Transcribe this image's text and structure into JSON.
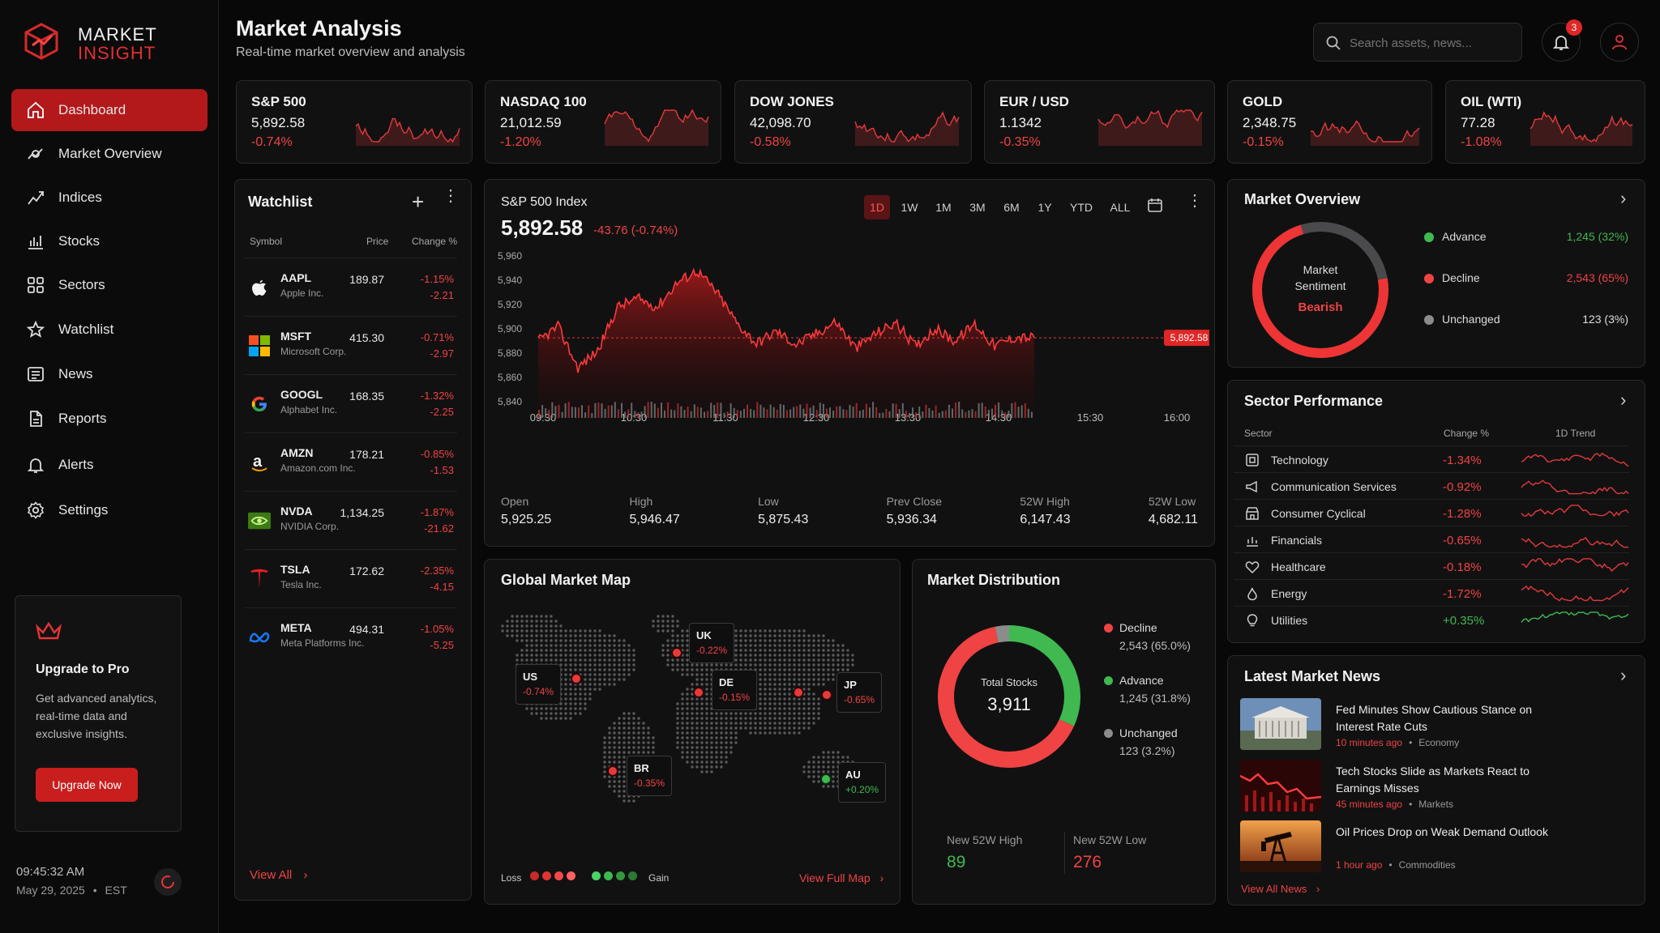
{
  "brand": {
    "line1": "MARKET",
    "line2": "INSIGHT"
  },
  "sidebar": {
    "items": [
      {
        "label": "Dashboard",
        "icon": "home-icon"
      },
      {
        "label": "Market Overview",
        "icon": "market-overview-icon"
      },
      {
        "label": "Indices",
        "icon": "indices-icon"
      },
      {
        "label": "Stocks",
        "icon": "stocks-icon"
      },
      {
        "label": "Sectors",
        "icon": "sectors-icon"
      },
      {
        "label": "Watchlist",
        "icon": "star-icon"
      },
      {
        "label": "News",
        "icon": "news-icon"
      },
      {
        "label": "Reports",
        "icon": "reports-icon"
      },
      {
        "label": "Alerts",
        "icon": "bell-icon"
      },
      {
        "label": "Settings",
        "icon": "gear-icon"
      }
    ],
    "upgrade": {
      "title": "Upgrade to Pro",
      "text": "Get advanced analytics, real-time data and exclusive insights.",
      "button": "Upgrade Now"
    },
    "clock": {
      "time": "09:45:32 AM",
      "date": "May 29, 2025",
      "tz": "EST"
    }
  },
  "header": {
    "title": "Market Analysis",
    "subtitle": "Real-time market overview and analysis",
    "search_placeholder": "Search assets, news...",
    "notifications": "3"
  },
  "tickers": [
    {
      "name": "S&P 500",
      "value": "5,892.58",
      "change": "-0.74%"
    },
    {
      "name": "NASDAQ 100",
      "value": "21,012.59",
      "change": "-1.20%"
    },
    {
      "name": "DOW JONES",
      "value": "42,098.70",
      "change": "-0.58%"
    },
    {
      "name": "EUR / USD",
      "value": "1.1342",
      "change": "-0.35%"
    },
    {
      "name": "GOLD",
      "value": "2,348.75",
      "change": "-0.15%"
    },
    {
      "name": "OIL (WTI)",
      "value": "77.28",
      "change": "-1.08%"
    }
  ],
  "watchlist": {
    "title": "Watchlist",
    "headers": {
      "symbol": "Symbol",
      "price": "Price",
      "change": "Change %"
    },
    "rows": [
      {
        "symbol": "AAPL",
        "name": "Apple Inc.",
        "price": "189.87",
        "pct": "-1.15%",
        "chg": "-2.21"
      },
      {
        "symbol": "MSFT",
        "name": "Microsoft Corp.",
        "price": "415.30",
        "pct": "-0.71%",
        "chg": "-2.97"
      },
      {
        "symbol": "GOOGL",
        "name": "Alphabet Inc.",
        "price": "168.35",
        "pct": "-1.32%",
        "chg": "-2.25"
      },
      {
        "symbol": "AMZN",
        "name": "Amazon.com Inc.",
        "price": "178.21",
        "pct": "-0.85%",
        "chg": "-1.53"
      },
      {
        "symbol": "NVDA",
        "name": "NVIDIA Corp.",
        "price": "1,134.25",
        "pct": "-1.87%",
        "chg": "-21.62"
      },
      {
        "symbol": "TSLA",
        "name": "Tesla Inc.",
        "price": "172.62",
        "pct": "-2.35%",
        "chg": "-4.15"
      },
      {
        "symbol": "META",
        "name": "Meta Platforms Inc.",
        "price": "494.31",
        "pct": "-1.05%",
        "chg": "-5.25"
      }
    ],
    "view_all": "View All"
  },
  "main_chart": {
    "title": "S&P 500 Index",
    "price": "5,892.58",
    "change": "-43.76 (-0.74%)",
    "ranges": [
      "1D",
      "1W",
      "1M",
      "3M",
      "6M",
      "1Y",
      "YTD",
      "ALL"
    ],
    "active_range": "1D",
    "last_label": "5,892.58",
    "stats": [
      {
        "label": "Open",
        "value": "5,925.25"
      },
      {
        "label": "High",
        "value": "5,946.47"
      },
      {
        "label": "Low",
        "value": "5,875.43"
      },
      {
        "label": "Prev Close",
        "value": "5,936.34"
      },
      {
        "label": "52W High",
        "value": "6,147.43"
      },
      {
        "label": "52W Low",
        "value": "4,682.11"
      }
    ]
  },
  "chart_data": {
    "type": "area",
    "x_ticks": [
      "09:30",
      "10:30",
      "11:30",
      "12:30",
      "13:30",
      "14:30",
      "15:30",
      "16:00"
    ],
    "y_ticks": [
      "5,960",
      "5,940",
      "5,920",
      "5,900",
      "5,880",
      "5,860",
      "5,840"
    ],
    "ylim": [
      5840,
      5960
    ],
    "reference_value": 5892.58,
    "x": [
      "09:30",
      "09:45",
      "10:00",
      "10:15",
      "10:30",
      "10:45",
      "11:00",
      "11:15",
      "11:30",
      "11:45",
      "12:00",
      "12:15",
      "12:30",
      "12:45",
      "13:00",
      "13:15",
      "13:30",
      "13:45",
      "14:00",
      "14:15",
      "14:30",
      "14:45",
      "15:00",
      "15:15",
      "15:30",
      "15:45"
    ],
    "values": [
      5890,
      5902,
      5868,
      5882,
      5918,
      5925,
      5918,
      5938,
      5948,
      5930,
      5905,
      5888,
      5898,
      5887,
      5896,
      5906,
      5884,
      5896,
      5905,
      5886,
      5900,
      5890,
      5904,
      5886,
      5893,
      5892.58
    ]
  },
  "market_overview": {
    "title": "Market Overview",
    "center": {
      "line1": "Market",
      "line2": "Sentiment",
      "sentiment": "Bearish"
    },
    "items": [
      {
        "label": "Advance",
        "value": "1,245 (32%)",
        "color": "#3fb950"
      },
      {
        "label": "Decline",
        "value": "2,543 (65%)",
        "color": "#f04343"
      },
      {
        "label": "Unchanged",
        "value": "123 (3%)",
        "color": "#8c8c8c"
      }
    ]
  },
  "sectors": {
    "title": "Sector Performance",
    "headers": {
      "sector": "Sector",
      "change": "Change %",
      "trend": "1D Trend"
    },
    "rows": [
      {
        "name": "Technology",
        "change": "-1.34%",
        "positive": false
      },
      {
        "name": "Communication Services",
        "change": "-0.92%",
        "positive": false
      },
      {
        "name": "Consumer Cyclical",
        "change": "-1.28%",
        "positive": false
      },
      {
        "name": "Financials",
        "change": "-0.65%",
        "positive": false
      },
      {
        "name": "Healthcare",
        "change": "-0.18%",
        "positive": false
      },
      {
        "name": "Energy",
        "change": "-1.72%",
        "positive": false
      },
      {
        "name": "Utilities",
        "change": "+0.35%",
        "positive": true
      }
    ]
  },
  "global_map": {
    "title": "Global Market Map",
    "markers": [
      {
        "code": "US",
        "change": "-0.74%"
      },
      {
        "code": "UK",
        "change": "-0.22%"
      },
      {
        "code": "DE",
        "change": "-0.15%"
      },
      {
        "code": "JP",
        "change": "-0.65%"
      },
      {
        "code": "BR",
        "change": "-0.35%"
      },
      {
        "code": "AU",
        "change": "+0.20%"
      }
    ],
    "legend_loss": "Loss",
    "legend_gain": "Gain",
    "view_full": "View Full Map"
  },
  "distribution": {
    "title": "Market Distribution",
    "center_label": "Total Stocks",
    "total": "3,911",
    "items": [
      {
        "label": "Decline",
        "value": "2,543 (65.0%)",
        "share": 65.0,
        "color": "#f04343"
      },
      {
        "label": "Advance",
        "value": "1,245 (31.8%)",
        "share": 31.8,
        "color": "#3fb950"
      },
      {
        "label": "Unchanged",
        "value": "123 (3.2%)",
        "share": 3.2,
        "color": "#8c8c8c"
      }
    ],
    "new_high_label": "New 52W High",
    "new_high": "89",
    "new_low_label": "New 52W Low",
    "new_low": "276"
  },
  "news": {
    "title": "Latest Market News",
    "items": [
      {
        "title": "Fed Minutes Show Cautious Stance on Interest Rate Cuts",
        "time": "10 minutes ago",
        "category": "Economy"
      },
      {
        "title": "Tech Stocks Slide as Markets React to Earnings Misses",
        "time": "45 minutes ago",
        "category": "Markets"
      },
      {
        "title": "Oil Prices Drop on Weak Demand Outlook",
        "time": "1 hour ago",
        "category": "Commodities"
      }
    ],
    "view_all": "View All News"
  }
}
